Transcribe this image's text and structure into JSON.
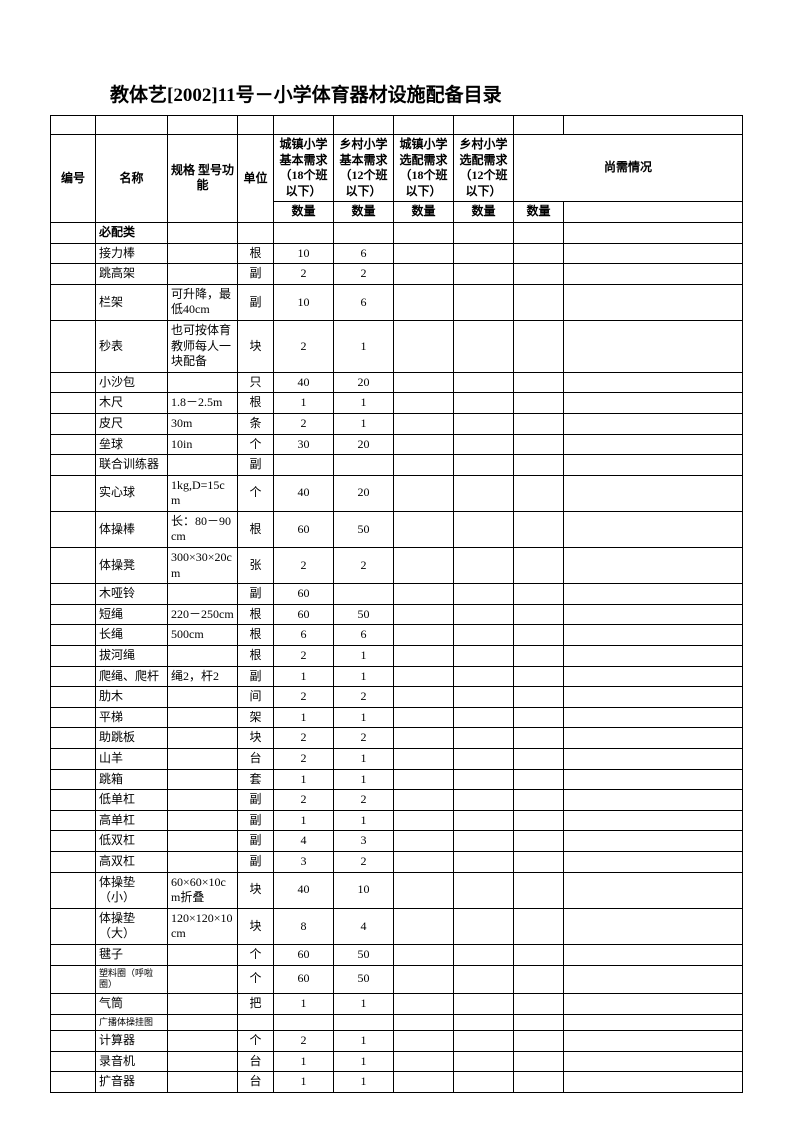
{
  "title": "教体艺[2002]11号－小学体育器材设施配备目录",
  "headers": {
    "num": "编号",
    "name": "名称",
    "spec": "规格 型号功能",
    "unit": "单位",
    "col1": "城镇小学基本需求（18个班以下）",
    "col2": "乡村小学基本需求（12个班以下）",
    "col3": "城镇小学选配需求（18个班以下）",
    "col4": "乡村小学选配需求（12个班以下）",
    "need": "尚需情况",
    "qty": "数量"
  },
  "category": "必配类",
  "rows": [
    {
      "name": "接力棒",
      "spec": "",
      "unit": "根",
      "q1": "10",
      "q2": "6"
    },
    {
      "name": "跳高架",
      "spec": "",
      "unit": "副",
      "q1": "2",
      "q2": "2"
    },
    {
      "name": "栏架",
      "spec": "可升降，最低40cm",
      "unit": "副",
      "q1": "10",
      "q2": "6"
    },
    {
      "name": "秒表",
      "spec": "也可按体育教师每人一块配备",
      "unit": "块",
      "q1": "2",
      "q2": "1"
    },
    {
      "name": "小沙包",
      "spec": "",
      "unit": "只",
      "q1": "40",
      "q2": "20"
    },
    {
      "name": "木尺",
      "spec": "1.8－2.5m",
      "unit": "根",
      "q1": "1",
      "q2": "1"
    },
    {
      "name": "皮尺",
      "spec": "30m",
      "unit": "条",
      "q1": "2",
      "q2": "1"
    },
    {
      "name": "垒球",
      "spec": "10in",
      "unit": "个",
      "q1": "30",
      "q2": "20"
    },
    {
      "name": "联合训练器",
      "spec": "",
      "unit": "副",
      "q1": "",
      "q2": ""
    },
    {
      "name": "实心球",
      "spec": "1kg,D=15cm",
      "unit": "个",
      "q1": "40",
      "q2": "20"
    },
    {
      "name": "体操棒",
      "spec": "长：80－90cm",
      "unit": "根",
      "q1": "60",
      "q2": "50"
    },
    {
      "name": "体操凳",
      "spec": "300×30×20cm",
      "unit": "张",
      "q1": "2",
      "q2": "2"
    },
    {
      "name": "木哑铃",
      "spec": "",
      "unit": "副",
      "q1": "60",
      "q2": ""
    },
    {
      "name": "短绳",
      "spec": "220－250cm",
      "unit": "根",
      "q1": "60",
      "q2": "50"
    },
    {
      "name": "长绳",
      "spec": "500cm",
      "unit": "根",
      "q1": "6",
      "q2": "6"
    },
    {
      "name": "拔河绳",
      "spec": "",
      "unit": "根",
      "q1": "2",
      "q2": "1"
    },
    {
      "name": "爬绳、爬杆",
      "spec": "绳2，杆2",
      "unit": "副",
      "q1": "1",
      "q2": "1"
    },
    {
      "name": "肋木",
      "spec": "",
      "unit": "间",
      "q1": "2",
      "q2": "2"
    },
    {
      "name": "平梯",
      "spec": "",
      "unit": "架",
      "q1": "1",
      "q2": "1"
    },
    {
      "name": "助跳板",
      "spec": "",
      "unit": "块",
      "q1": "2",
      "q2": "2"
    },
    {
      "name": "山羊",
      "spec": "",
      "unit": "台",
      "q1": "2",
      "q2": "1"
    },
    {
      "name": "跳箱",
      "spec": "",
      "unit": "套",
      "q1": "1",
      "q2": "1"
    },
    {
      "name": "低单杠",
      "spec": "",
      "unit": "副",
      "q1": "2",
      "q2": "2"
    },
    {
      "name": "高单杠",
      "spec": "",
      "unit": "副",
      "q1": "1",
      "q2": "1"
    },
    {
      "name": "低双杠",
      "spec": "",
      "unit": "副",
      "q1": "4",
      "q2": "3"
    },
    {
      "name": "高双杠",
      "spec": "",
      "unit": "副",
      "q1": "3",
      "q2": "2"
    },
    {
      "name": "体操垫（小）",
      "spec": "60×60×10cm折叠",
      "unit": "块",
      "q1": "40",
      "q2": "10"
    },
    {
      "name": "体操垫（大）",
      "spec": "120×120×10cm",
      "unit": "块",
      "q1": "8",
      "q2": "4"
    },
    {
      "name": "毽子",
      "spec": "",
      "unit": "个",
      "q1": "60",
      "q2": "50"
    },
    {
      "name": "塑料圈（呼啦圈）",
      "spec": "",
      "unit": "个",
      "q1": "60",
      "q2": "50",
      "small": true
    },
    {
      "name": "气筒",
      "spec": "",
      "unit": "把",
      "q1": "1",
      "q2": "1"
    },
    {
      "name": "广播体操挂图",
      "spec": "",
      "unit": "",
      "q1": "",
      "q2": "",
      "small": true
    },
    {
      "name": "计算器",
      "spec": "",
      "unit": "个",
      "q1": "2",
      "q2": "1"
    },
    {
      "name": "录音机",
      "spec": "",
      "unit": "台",
      "q1": "1",
      "q2": "1"
    },
    {
      "name": "扩音器",
      "spec": "",
      "unit": "台",
      "q1": "1",
      "q2": "1"
    }
  ]
}
